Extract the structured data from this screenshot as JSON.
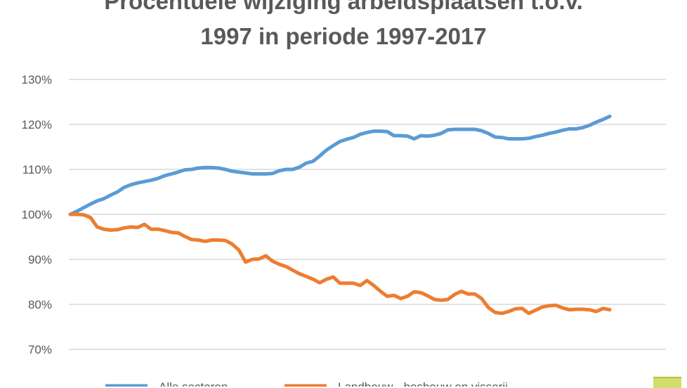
{
  "chart_data": {
    "type": "line",
    "title_lines": [
      "Procentuele wijziging arbeidsplaatsen t.o.v.",
      "1997 in periode 1997-2017"
    ],
    "xlabel": "",
    "ylabel": "",
    "y_ticks": [
      "70%",
      "80%",
      "90%",
      "100%",
      "110%",
      "120%",
      "130%"
    ],
    "y_tick_values": [
      70,
      80,
      90,
      100,
      110,
      120,
      130
    ],
    "ylim": [
      70,
      130
    ],
    "x": [
      1997.0,
      1997.25,
      1997.5,
      1997.75,
      1998.0,
      1998.25,
      1998.5,
      1998.75,
      1999.0,
      1999.25,
      1999.5,
      1999.75,
      2000.0,
      2000.25,
      2000.5,
      2000.75,
      2001.0,
      2001.25,
      2001.5,
      2001.75,
      2002.0,
      2002.25,
      2002.5,
      2002.75,
      2003.0,
      2003.25,
      2003.5,
      2003.75,
      2004.0,
      2004.25,
      2004.5,
      2004.75,
      2005.0,
      2005.25,
      2005.5,
      2005.75,
      2006.0,
      2006.25,
      2006.5,
      2006.75,
      2007.0,
      2007.25,
      2007.5,
      2007.75,
      2008.0,
      2008.25,
      2008.5,
      2008.75,
      2009.0,
      2009.25,
      2009.5,
      2009.75,
      2010.0,
      2010.25,
      2010.5,
      2010.75,
      2011.0,
      2011.25,
      2011.5,
      2011.75,
      2012.0,
      2012.25,
      2012.5,
      2012.75,
      2013.0,
      2013.25,
      2013.5,
      2013.75,
      2014.0,
      2014.25,
      2014.5,
      2014.75,
      2015.0,
      2015.25,
      2015.5,
      2015.75,
      2016.0,
      2016.25,
      2016.5,
      2016.75,
      2017.0
    ],
    "series": [
      {
        "name": "Alle sectoren",
        "color": "#5B9BD5",
        "values": [
          100.0,
          100.7,
          101.5,
          102.3,
          103.0,
          103.5,
          104.3,
          105.0,
          106.0,
          106.6,
          107.0,
          107.3,
          107.6,
          108.0,
          108.6,
          109.0,
          109.4,
          109.9,
          110.0,
          110.3,
          110.4,
          110.4,
          110.3,
          110.0,
          109.6,
          109.4,
          109.2,
          109.0,
          109.0,
          109.0,
          109.1,
          109.7,
          110.0,
          110.0,
          110.5,
          111.4,
          111.8,
          113.0,
          114.3,
          115.3,
          116.2,
          116.7,
          117.1,
          117.8,
          118.2,
          118.5,
          118.5,
          118.4,
          117.5,
          117.5,
          117.4,
          116.8,
          117.5,
          117.4,
          117.6,
          118.0,
          118.8,
          118.9,
          118.9,
          118.9,
          118.9,
          118.6,
          118.0,
          117.2,
          117.1,
          116.8,
          116.8,
          116.8,
          116.9,
          117.3,
          117.6,
          118.0,
          118.3,
          118.7,
          119.0,
          119.0,
          119.3,
          119.8,
          120.5,
          121.1,
          121.8
        ]
      },
      {
        "name": "Landbouw-, bosbouw en visserij",
        "color": "#ED7D31",
        "values": [
          100.0,
          100.0,
          99.9,
          99.3,
          97.2,
          96.7,
          96.5,
          96.6,
          97.0,
          97.2,
          97.1,
          97.8,
          96.7,
          96.7,
          96.4,
          96.0,
          95.9,
          95.1,
          94.4,
          94.3,
          94.0,
          94.3,
          94.3,
          94.2,
          93.4,
          92.1,
          89.4,
          90.0,
          90.1,
          90.8,
          89.6,
          88.9,
          88.4,
          87.6,
          86.8,
          86.2,
          85.6,
          84.8,
          85.6,
          86.1,
          84.7,
          84.7,
          84.7,
          84.2,
          85.3,
          84.2,
          82.9,
          81.8,
          82.0,
          81.3,
          81.8,
          82.8,
          82.6,
          81.9,
          81.1,
          80.9,
          81.1,
          82.2,
          82.9,
          82.3,
          82.3,
          81.3,
          79.3,
          78.2,
          78.0,
          78.4,
          79.0,
          79.1,
          78.0,
          78.7,
          79.4,
          79.7,
          79.8,
          79.2,
          78.8,
          78.9,
          78.9,
          78.8,
          78.4,
          79.1,
          78.8
        ]
      }
    ],
    "legend": [
      "Alle sectoren",
      "Landbouw-, bosbouw en visserij"
    ],
    "legend_position": "bottom",
    "grid": true
  }
}
